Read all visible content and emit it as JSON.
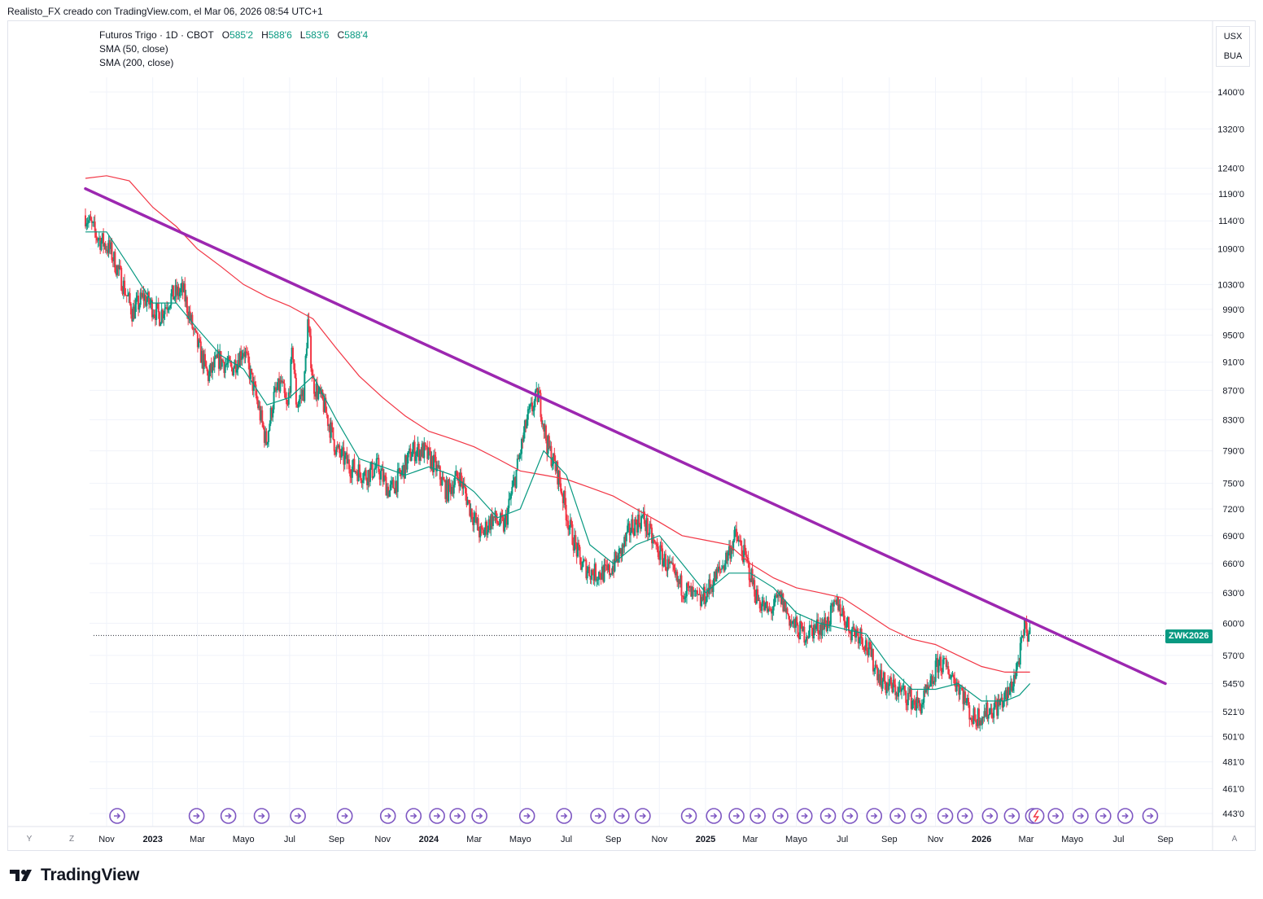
{
  "caption": "Realisto_FX creado con TradingView.com, el Mar 06, 2026 08:54 UTC+1",
  "legend": {
    "title": "Futuros Trigo · 1D · CBOT",
    "open_label": "O",
    "open": "585'2",
    "high_label": "H",
    "high": "588'6",
    "low_label": "L",
    "low": "583'6",
    "close_label": "C",
    "close": "588'4",
    "sma50": "SMA (50, close)",
    "sma200": "SMA (200, close)"
  },
  "price_axis": {
    "units": [
      "USX",
      "BUA"
    ],
    "symbol_tag": "ZWK2026"
  },
  "corner_buttons": {
    "y_label": "Y",
    "z_label": "Z",
    "a_label": "A"
  },
  "brand": {
    "name": "TradingView",
    "icon": "tradingview-logo-icon"
  },
  "colors": {
    "up": "#089981",
    "down": "#f23645",
    "sma50": "#089981",
    "sma200": "#f23645",
    "trendline": "#9c27b0",
    "event": "#7e57c2",
    "grid": "#f0f3fa",
    "axis_text": "#131722"
  },
  "chart_data": {
    "type": "candlestick",
    "title": "Futuros Trigo · 1D · CBOT",
    "log_scale": true,
    "grid": true,
    "y_ticks": [
      "443'0",
      "461'0",
      "481'0",
      "501'0",
      "521'0",
      "545'0",
      "570'0",
      "600'0",
      "630'0",
      "660'0",
      "690'0",
      "720'0",
      "750'0",
      "790'0",
      "830'0",
      "870'0",
      "910'0",
      "950'0",
      "990'0",
      "1030'0",
      "1090'0",
      "1140'0",
      "1190'0",
      "1240'0",
      "1320'0",
      "1400'0"
    ],
    "x_ticks": [
      {
        "label": "Nov",
        "date": "2022-11-01",
        "bold": false
      },
      {
        "label": "2023",
        "date": "2023-01-01",
        "bold": true
      },
      {
        "label": "Mar",
        "date": "2023-03-01",
        "bold": false
      },
      {
        "label": "Mayo",
        "date": "2023-05-01",
        "bold": false
      },
      {
        "label": "Jul",
        "date": "2023-07-01",
        "bold": false
      },
      {
        "label": "Sep",
        "date": "2023-09-01",
        "bold": false
      },
      {
        "label": "Nov",
        "date": "2023-11-01",
        "bold": false
      },
      {
        "label": "2024",
        "date": "2024-01-01",
        "bold": true
      },
      {
        "label": "Mar",
        "date": "2024-03-01",
        "bold": false
      },
      {
        "label": "Mayo",
        "date": "2024-05-01",
        "bold": false
      },
      {
        "label": "Jul",
        "date": "2024-07-01",
        "bold": false
      },
      {
        "label": "Sep",
        "date": "2024-09-01",
        "bold": false
      },
      {
        "label": "Nov",
        "date": "2024-11-01",
        "bold": false
      },
      {
        "label": "2025",
        "date": "2025-01-01",
        "bold": true
      },
      {
        "label": "Mar",
        "date": "2025-03-01",
        "bold": false
      },
      {
        "label": "Mayo",
        "date": "2025-05-01",
        "bold": false
      },
      {
        "label": "Jul",
        "date": "2025-07-01",
        "bold": false
      },
      {
        "label": "Sep",
        "date": "2025-09-01",
        "bold": false
      },
      {
        "label": "Nov",
        "date": "2025-11-01",
        "bold": false
      },
      {
        "label": "2026",
        "date": "2026-01-01",
        "bold": true
      },
      {
        "label": "Mar",
        "date": "2026-03-01",
        "bold": false
      },
      {
        "label": "Mayo",
        "date": "2026-05-01",
        "bold": false
      },
      {
        "label": "Jul",
        "date": "2026-07-01",
        "bold": false
      },
      {
        "label": "Sep",
        "date": "2026-09-01",
        "bold": false
      }
    ],
    "price_path": [
      [
        "2022-10-04",
        1150
      ],
      [
        "2022-10-20",
        1110
      ],
      [
        "2022-11-05",
        1090
      ],
      [
        "2022-11-20",
        1040
      ],
      [
        "2022-12-05",
        985
      ],
      [
        "2022-12-20",
        1010
      ],
      [
        "2023-01-10",
        980
      ],
      [
        "2023-01-25",
        1010
      ],
      [
        "2023-02-10",
        1020
      ],
      [
        "2023-02-25",
        950
      ],
      [
        "2023-03-15",
        890
      ],
      [
        "2023-03-30",
        915
      ],
      [
        "2023-04-15",
        900
      ],
      [
        "2023-05-01",
        930
      ],
      [
        "2023-05-20",
        850
      ],
      [
        "2023-05-31",
        800
      ],
      [
        "2023-06-10",
        860
      ],
      [
        "2023-06-20",
        880
      ],
      [
        "2023-06-28",
        840
      ],
      [
        "2023-07-05",
        930
      ],
      [
        "2023-07-10",
        850
      ],
      [
        "2023-07-20",
        870
      ],
      [
        "2023-07-25",
        970
      ],
      [
        "2023-08-01",
        880
      ],
      [
        "2023-08-15",
        850
      ],
      [
        "2023-09-01",
        790
      ],
      [
        "2023-09-20",
        770
      ],
      [
        "2023-10-10",
        760
      ],
      [
        "2023-10-25",
        770
      ],
      [
        "2023-11-10",
        740
      ],
      [
        "2023-11-25",
        760
      ],
      [
        "2023-12-10",
        790
      ],
      [
        "2023-12-25",
        790
      ],
      [
        "2024-01-10",
        770
      ],
      [
        "2024-01-25",
        740
      ],
      [
        "2024-02-10",
        760
      ],
      [
        "2024-02-25",
        720
      ],
      [
        "2024-03-10",
        690
      ],
      [
        "2024-03-25",
        710
      ],
      [
        "2024-04-10",
        700
      ],
      [
        "2024-04-25",
        760
      ],
      [
        "2024-05-10",
        830
      ],
      [
        "2024-05-25",
        865
      ],
      [
        "2024-06-05",
        800
      ],
      [
        "2024-06-20",
        760
      ],
      [
        "2024-07-05",
        700
      ],
      [
        "2024-07-20",
        660
      ],
      [
        "2024-08-05",
        650
      ],
      [
        "2024-08-25",
        650
      ],
      [
        "2024-09-10",
        670
      ],
      [
        "2024-09-25",
        700
      ],
      [
        "2024-10-10",
        710
      ],
      [
        "2024-10-25",
        680
      ],
      [
        "2024-11-10",
        660
      ],
      [
        "2024-11-25",
        640
      ],
      [
        "2024-12-10",
        630
      ],
      [
        "2024-12-25",
        620
      ],
      [
        "2025-01-10",
        640
      ],
      [
        "2025-01-25",
        660
      ],
      [
        "2025-02-10",
        690
      ],
      [
        "2025-02-25",
        660
      ],
      [
        "2025-03-10",
        625
      ],
      [
        "2025-03-25",
        610
      ],
      [
        "2025-04-10",
        625
      ],
      [
        "2025-04-25",
        600
      ],
      [
        "2025-05-10",
        590
      ],
      [
        "2025-05-25",
        595
      ],
      [
        "2025-06-10",
        600
      ],
      [
        "2025-06-25",
        620
      ],
      [
        "2025-07-10",
        595
      ],
      [
        "2025-07-25",
        590
      ],
      [
        "2025-08-10",
        565
      ],
      [
        "2025-08-25",
        545
      ],
      [
        "2025-09-10",
        540
      ],
      [
        "2025-09-25",
        535
      ],
      [
        "2025-10-10",
        525
      ],
      [
        "2025-10-25",
        540
      ],
      [
        "2025-11-05",
        565
      ],
      [
        "2025-11-20",
        555
      ],
      [
        "2025-12-05",
        540
      ],
      [
        "2025-12-20",
        515
      ],
      [
        "2026-01-05",
        520
      ],
      [
        "2026-01-20",
        525
      ],
      [
        "2026-02-05",
        535
      ],
      [
        "2026-02-15",
        555
      ],
      [
        "2026-02-22",
        575
      ],
      [
        "2026-02-27",
        595
      ],
      [
        "2026-03-06",
        588
      ]
    ],
    "sma50_path": [
      [
        "2022-10-04",
        1120
      ],
      [
        "2022-11-01",
        1120
      ],
      [
        "2022-12-01",
        1060
      ],
      [
        "2023-01-01",
        1000
      ],
      [
        "2023-02-01",
        1000
      ],
      [
        "2023-03-01",
        960
      ],
      [
        "2023-04-01",
        920
      ],
      [
        "2023-05-01",
        900
      ],
      [
        "2023-06-01",
        850
      ],
      [
        "2023-07-01",
        860
      ],
      [
        "2023-08-01",
        890
      ],
      [
        "2023-09-01",
        830
      ],
      [
        "2023-10-01",
        780
      ],
      [
        "2023-11-01",
        770
      ],
      [
        "2023-12-01",
        760
      ],
      [
        "2024-01-01",
        770
      ],
      [
        "2024-02-01",
        760
      ],
      [
        "2024-03-01",
        740
      ],
      [
        "2024-04-01",
        710
      ],
      [
        "2024-05-01",
        720
      ],
      [
        "2024-06-01",
        790
      ],
      [
        "2024-07-01",
        760
      ],
      [
        "2024-08-01",
        680
      ],
      [
        "2024-09-01",
        660
      ],
      [
        "2024-10-01",
        680
      ],
      [
        "2024-11-01",
        690
      ],
      [
        "2024-12-01",
        660
      ],
      [
        "2025-01-01",
        630
      ],
      [
        "2025-02-01",
        650
      ],
      [
        "2025-03-01",
        650
      ],
      [
        "2025-04-01",
        635
      ],
      [
        "2025-05-01",
        610
      ],
      [
        "2025-06-01",
        600
      ],
      [
        "2025-07-01",
        595
      ],
      [
        "2025-08-01",
        590
      ],
      [
        "2025-09-01",
        560
      ],
      [
        "2025-10-01",
        540
      ],
      [
        "2025-11-01",
        540
      ],
      [
        "2025-12-01",
        545
      ],
      [
        "2026-01-01",
        530
      ],
      [
        "2026-02-01",
        530
      ],
      [
        "2026-02-20",
        535
      ],
      [
        "2026-03-06",
        545
      ]
    ],
    "sma200_path": [
      [
        "2022-10-04",
        1220
      ],
      [
        "2022-11-01",
        1225
      ],
      [
        "2022-12-01",
        1215
      ],
      [
        "2023-01-01",
        1165
      ],
      [
        "2023-02-01",
        1130
      ],
      [
        "2023-03-01",
        1090
      ],
      [
        "2023-04-01",
        1060
      ],
      [
        "2023-05-01",
        1030
      ],
      [
        "2023-06-01",
        1010
      ],
      [
        "2023-07-01",
        995
      ],
      [
        "2023-08-01",
        975
      ],
      [
        "2023-09-01",
        930
      ],
      [
        "2023-10-01",
        890
      ],
      [
        "2023-11-01",
        860
      ],
      [
        "2023-12-01",
        835
      ],
      [
        "2024-01-01",
        815
      ],
      [
        "2024-02-01",
        805
      ],
      [
        "2024-03-01",
        795
      ],
      [
        "2024-04-01",
        780
      ],
      [
        "2024-05-01",
        765
      ],
      [
        "2024-06-01",
        760
      ],
      [
        "2024-07-01",
        755
      ],
      [
        "2024-08-01",
        745
      ],
      [
        "2024-09-01",
        735
      ],
      [
        "2024-10-01",
        720
      ],
      [
        "2024-11-01",
        705
      ],
      [
        "2024-12-01",
        690
      ],
      [
        "2025-01-01",
        685
      ],
      [
        "2025-02-01",
        680
      ],
      [
        "2025-03-01",
        660
      ],
      [
        "2025-04-01",
        645
      ],
      [
        "2025-05-01",
        635
      ],
      [
        "2025-06-01",
        630
      ],
      [
        "2025-07-01",
        625
      ],
      [
        "2025-08-01",
        610
      ],
      [
        "2025-09-01",
        595
      ],
      [
        "2025-10-01",
        585
      ],
      [
        "2025-11-01",
        580
      ],
      [
        "2025-12-01",
        570
      ],
      [
        "2026-01-01",
        560
      ],
      [
        "2026-02-01",
        555
      ],
      [
        "2026-03-06",
        555
      ]
    ],
    "trendline": {
      "from": [
        "2022-10-04",
        1200
      ],
      "to": [
        "2026-09-01",
        545
      ]
    },
    "last_price": 588.5,
    "event_markers": [
      "2022-11-15",
      "2023-02-28",
      "2023-04-11",
      "2023-05-25",
      "2023-07-12",
      "2023-09-12",
      "2023-11-08",
      "2023-12-12",
      "2024-01-12",
      "2024-02-08",
      "2024-03-08",
      "2024-05-10",
      "2024-06-28",
      "2024-08-12",
      "2024-09-12",
      "2024-10-10",
      "2024-12-10",
      "2025-01-12",
      "2025-02-11",
      "2025-03-11",
      "2025-04-10",
      "2025-05-12",
      "2025-06-12",
      "2025-07-11",
      "2025-08-12",
      "2025-09-12",
      "2025-10-10",
      "2025-11-14",
      "2025-12-10",
      "2026-01-12",
      "2026-02-10",
      "2026-03-10",
      "2026-04-09",
      "2026-05-12",
      "2026-06-11",
      "2026-07-10",
      "2026-08-12"
    ],
    "active_event": "2026-03-06"
  }
}
